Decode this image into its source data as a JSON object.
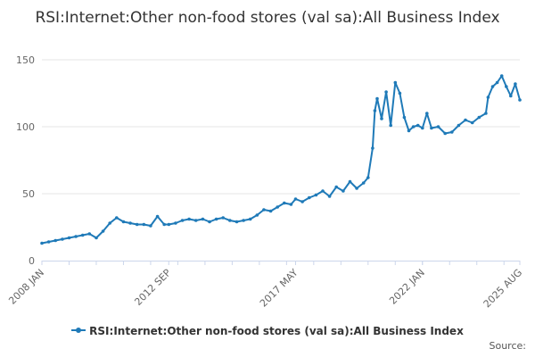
{
  "colors": {
    "series": "#1f7ab8",
    "grid": "#e6e6e6",
    "axis": "#ccd6eb"
  },
  "chart_data": {
    "type": "line",
    "title": "RSI:Internet:Other non-food stores (val sa):All Business Index",
    "legend_placement": "bottom",
    "grid": true,
    "ylim": [
      0,
      150
    ],
    "yticks": [
      "0",
      "50",
      "100",
      "150"
    ],
    "xticks": [
      "2008 JAN",
      "2012 SEP",
      "2017 MAY",
      "2022 JAN",
      "2025 AUG"
    ],
    "xlim": [
      "2008-01",
      "2025-08"
    ],
    "series": [
      {
        "name": "RSI:Internet:Other non-food stores (val sa):All Business Index",
        "x": [
          "2008-01",
          "2008-04",
          "2008-07",
          "2008-10",
          "2009-01",
          "2009-04",
          "2009-07",
          "2009-10",
          "2010-01",
          "2010-04",
          "2010-07",
          "2010-10",
          "2011-01",
          "2011-04",
          "2011-07",
          "2011-10",
          "2012-01",
          "2012-04",
          "2012-07",
          "2012-09",
          "2012-12",
          "2013-03",
          "2013-06",
          "2013-09",
          "2013-12",
          "2014-03",
          "2014-06",
          "2014-09",
          "2014-12",
          "2015-03",
          "2015-06",
          "2015-09",
          "2015-12",
          "2016-03",
          "2016-06",
          "2016-09",
          "2016-12",
          "2017-03",
          "2017-05",
          "2017-08",
          "2017-11",
          "2018-02",
          "2018-05",
          "2018-08",
          "2018-11",
          "2019-02",
          "2019-05",
          "2019-08",
          "2019-11",
          "2020-01",
          "2020-03",
          "2020-04",
          "2020-05",
          "2020-07",
          "2020-09",
          "2020-11",
          "2021-01",
          "2021-03",
          "2021-05",
          "2021-07",
          "2021-09",
          "2021-11",
          "2022-01",
          "2022-03",
          "2022-05",
          "2022-08",
          "2022-11",
          "2023-02",
          "2023-05",
          "2023-08",
          "2023-11",
          "2024-02",
          "2024-05",
          "2024-06",
          "2024-08",
          "2024-10",
          "2024-12",
          "2025-02",
          "2025-04",
          "2025-06",
          "2025-08"
        ],
        "values": [
          13,
          14,
          15,
          16,
          17,
          18,
          19,
          20,
          17,
          22,
          28,
          32,
          29,
          28,
          27,
          27,
          26,
          33,
          27,
          27,
          28,
          30,
          31,
          30,
          31,
          29,
          31,
          32,
          30,
          29,
          30,
          31,
          34,
          38,
          37,
          40,
          43,
          42,
          46,
          44,
          47,
          49,
          52,
          48,
          55,
          52,
          59,
          54,
          58,
          62,
          84,
          112,
          121,
          106,
          126,
          101,
          133,
          125,
          107,
          97,
          100,
          101,
          99,
          110,
          99,
          100,
          95,
          96,
          101,
          105,
          103,
          107,
          110,
          122,
          130,
          133,
          138,
          130,
          123,
          132,
          120
        ]
      }
    ]
  },
  "credit": "Source:"
}
